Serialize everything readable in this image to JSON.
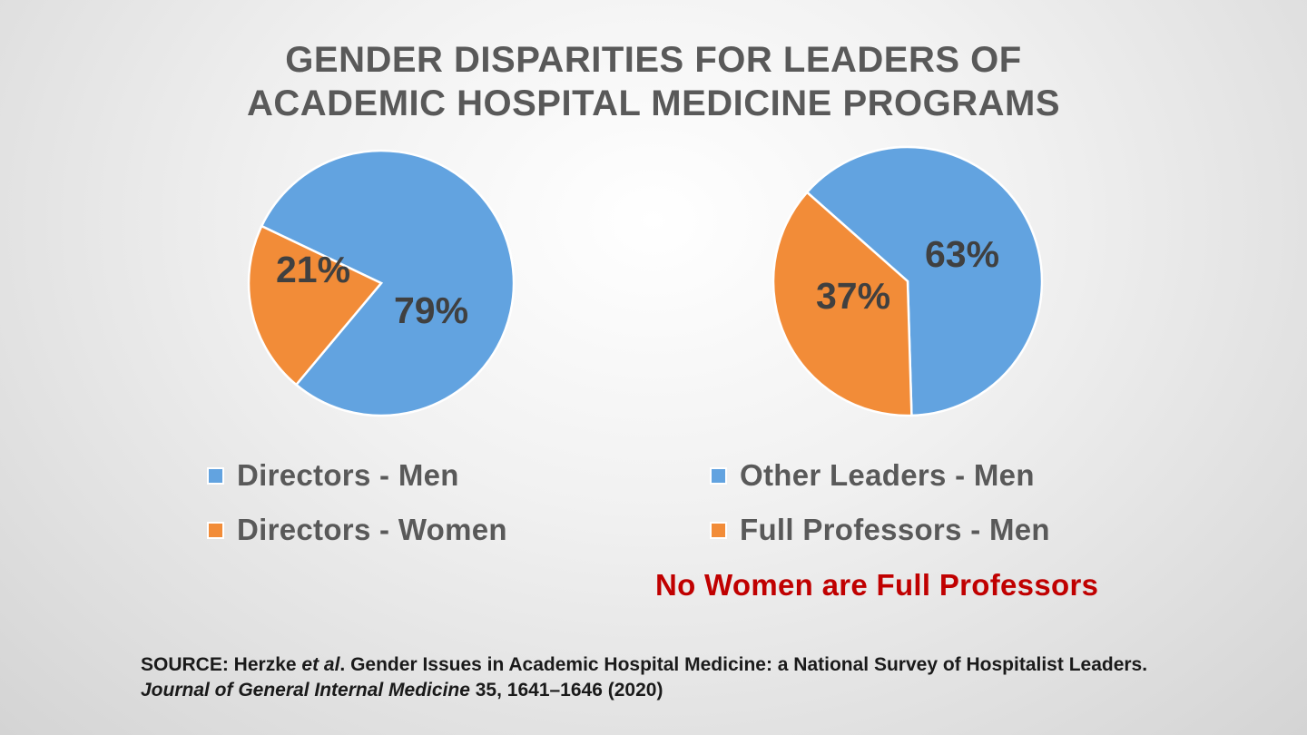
{
  "title": {
    "line1": "GENDER DISPARITIES FOR LEADERS OF",
    "line2": "ACADEMIC HOSPITAL MEDICINE PROGRAMS"
  },
  "colors": {
    "men": "#62a3e0",
    "women": "#f28c38",
    "title": "#595959",
    "note": "#c00000"
  },
  "chart_data": [
    {
      "type": "pie",
      "slices": [
        {
          "label": "Directors - Men",
          "value": 79,
          "display": "79%",
          "color": "#62a3e0"
        },
        {
          "label": "Directors - Women",
          "value": 21,
          "display": "21%",
          "color": "#f28c38"
        }
      ],
      "legend_placement": "bottom"
    },
    {
      "type": "pie",
      "slices": [
        {
          "label": "Other Leaders - Men",
          "value": 63,
          "display": "63%",
          "color": "#62a3e0"
        },
        {
          "label": "Full Professors - Men",
          "value": 37,
          "display": "37%",
          "color": "#f28c38"
        }
      ],
      "legend_placement": "bottom"
    }
  ],
  "note": "No Women are Full Professors",
  "source": {
    "part1": "SOURCE:  Herzke ",
    "part2": "et al",
    "part3": ". Gender Issues in Academic Hospital Medicine: a National Survey of Hospitalist Leaders. ",
    "part4": "Journal of General Internal Medicine",
    "part5": " 35, 1641–1646 (2020)"
  }
}
